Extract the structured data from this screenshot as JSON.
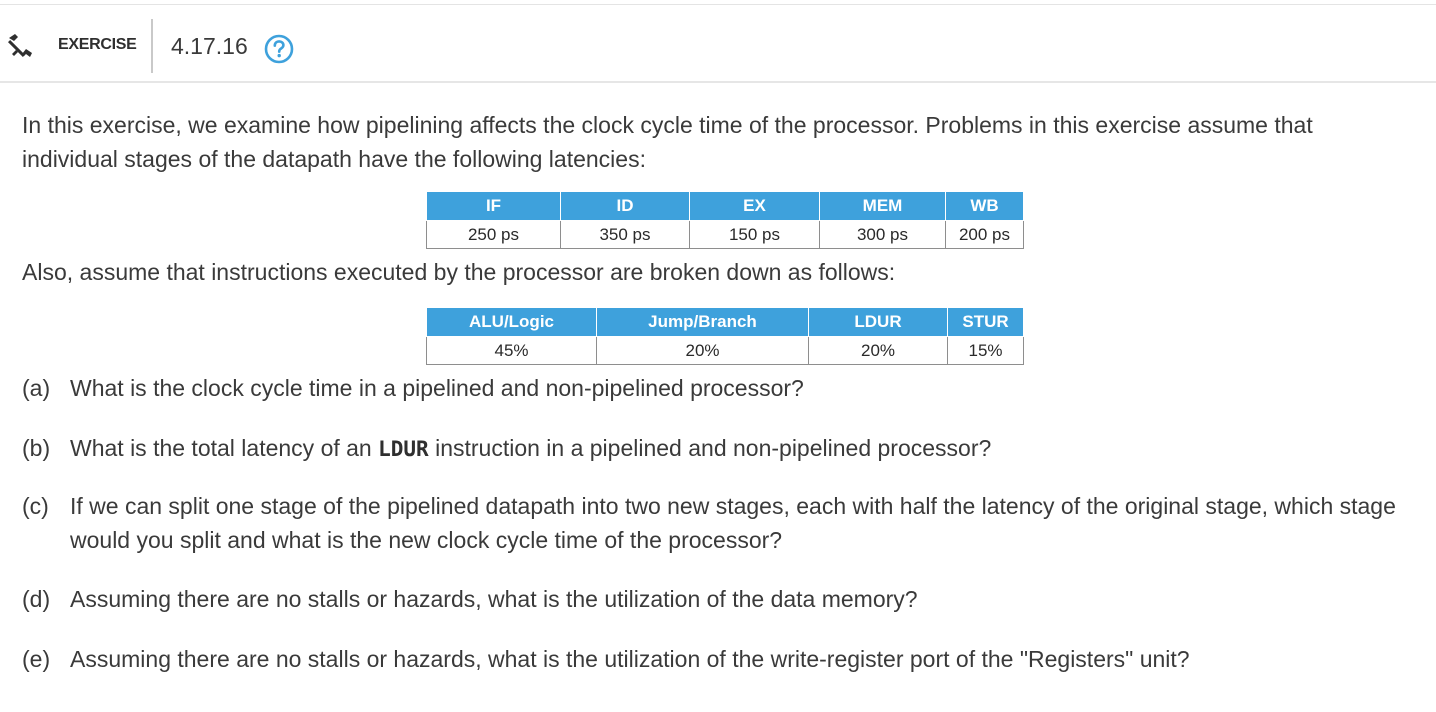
{
  "header": {
    "label": "EXERCISE",
    "number": "4.17.16",
    "icons": [
      "tools-icon",
      "help-icon"
    ],
    "colors": {
      "accent": "#3ea1dc",
      "rule": "#e6e6e6"
    }
  },
  "intro": "In this exercise, we examine how pipelining affects the clock cycle time of the processor. Problems in this exercise assume that individual stages of the datapath have the following latencies:",
  "stage_table": {
    "headers": [
      "IF",
      "ID",
      "EX",
      "MEM",
      "WB"
    ],
    "values": [
      "250 ps",
      "350 ps",
      "150 ps",
      "300 ps",
      "200 ps"
    ]
  },
  "also": "Also, assume that instructions executed by the processor are broken down as follows:",
  "mix_table": {
    "headers": [
      "ALU/Logic",
      "Jump/Branch",
      "LDUR",
      "STUR"
    ],
    "values": [
      "45%",
      "20%",
      "20%",
      "15%"
    ]
  },
  "questions": [
    {
      "label": "(a)",
      "text": "What is the clock cycle time in a pipelined and non-pipelined processor?"
    },
    {
      "label": "(b)",
      "text_before": "What is the total latency of an ",
      "code": "LDUR",
      "text_after": " instruction in a pipelined and non-pipelined processor?"
    },
    {
      "label": "(c)",
      "text": "If we can split one stage of the pipelined datapath into two new stages, each with half the latency of the original stage, which stage would you split and what is the new clock cycle time of the processor?"
    },
    {
      "label": "(d)",
      "text": "Assuming there are no stalls or hazards, what is the utilization of the data memory?"
    },
    {
      "label": "(e)",
      "text": "Assuming there are no stalls or hazards, what is the utilization of the write-register port of the \"Registers\" unit?"
    }
  ]
}
